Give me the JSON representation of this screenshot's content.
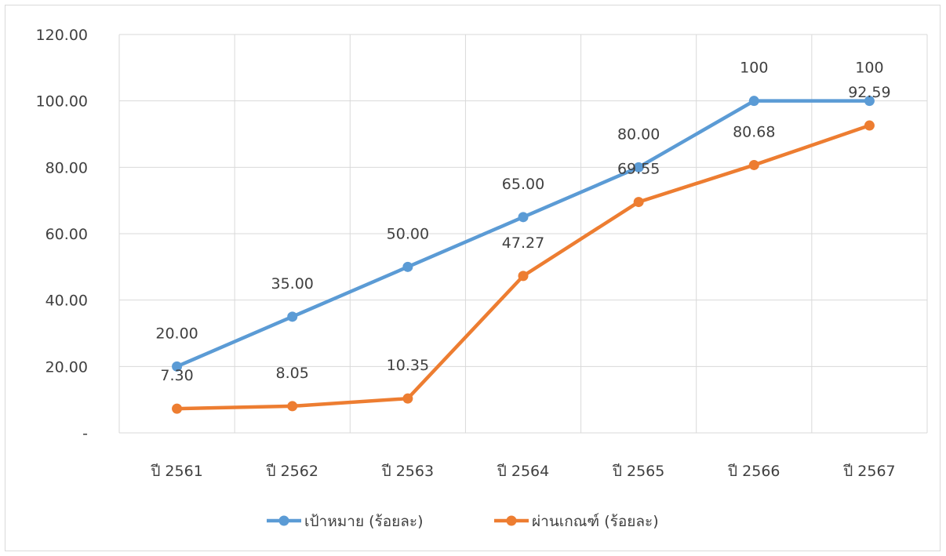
{
  "chart_data": {
    "type": "line",
    "title": "",
    "xlabel": "",
    "ylabel": "",
    "categories": [
      "ปี 2561",
      "ปี 2562",
      "ปี 2563",
      "ปี 2564",
      "ปี 2565",
      "ปี 2566",
      "ปี 2567"
    ],
    "y_ticks": [
      "-",
      "20.00",
      "40.00",
      "60.00",
      "80.00",
      "100.00",
      "120.00"
    ],
    "ylim": [
      0,
      120
    ],
    "grid": true,
    "legend_position": "bottom",
    "series": [
      {
        "name": "เป้าหมาย (ร้อยละ)",
        "color": "#5B9BD5",
        "values": [
          20,
          35,
          50,
          65,
          80,
          100,
          100
        ],
        "labels": [
          "20.00",
          "35.00",
          "50.00",
          "65.00",
          "80.00",
          "100",
          "100"
        ]
      },
      {
        "name": "ผ่านเกณฑ์ (ร้อยละ)",
        "color": "#ED7D31",
        "values": [
          7.3,
          8.05,
          10.35,
          47.27,
          69.55,
          80.68,
          92.59
        ],
        "labels": [
          "7.30",
          "8.05",
          "10.35",
          "47.27",
          "69.55",
          "80.68",
          "92.59"
        ]
      }
    ]
  }
}
